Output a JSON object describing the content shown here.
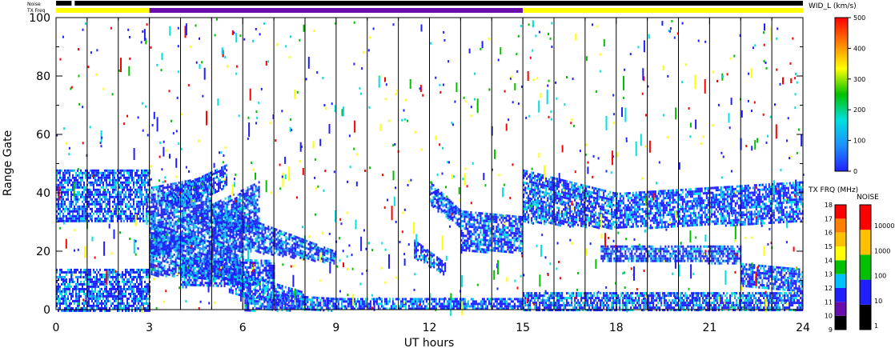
{
  "header": {
    "noise_label": "Noise",
    "txfreq_label": "TX Freq"
  },
  "chart_data": {
    "type": "heatmap",
    "xlabel": "UT hours",
    "ylabel": "Range Gate",
    "xlim": [
      0,
      24
    ],
    "ylim": [
      0,
      100
    ],
    "x_ticks": [
      0,
      3,
      6,
      9,
      12,
      15,
      18,
      21,
      24
    ],
    "y_ticks": [
      0,
      20,
      40,
      60,
      80,
      100
    ],
    "grid_vertical_hours": [
      1,
      2,
      3,
      4,
      5,
      6,
      7,
      8,
      9,
      10,
      11,
      12,
      13,
      14,
      15,
      16,
      17,
      18,
      19,
      20,
      21,
      22,
      23
    ],
    "colorbar_width": {
      "title": "WID_L (km/s)",
      "ticks": [
        0,
        100,
        200,
        300,
        400,
        500
      ],
      "colors": [
        "#2020ff",
        "#1e90ff",
        "#00e0e0",
        "#00c000",
        "#ffff00",
        "#ff8000",
        "#ff0000"
      ]
    },
    "colorbar_txfreq": {
      "title": "TX FRQ (MHz)",
      "ticks": [
        "9",
        "10",
        "11",
        "12",
        "13",
        "14",
        "15",
        "16",
        "17",
        "18"
      ],
      "colors": [
        "#000000",
        "#6a0dad",
        "#2020ff",
        "#00c0ff",
        "#00c000",
        "#ffff00",
        "#ffc000",
        "#ff8000",
        "#ff0000"
      ]
    },
    "colorbar_noise": {
      "title": "NOISE",
      "ticks": [
        "1",
        "10",
        "100",
        "1000",
        "10000"
      ],
      "colors": [
        "#000000",
        "#2020ff",
        "#00c000",
        "#ffc000",
        "#ff0000"
      ]
    },
    "tx_freq_segments": [
      {
        "start": 0,
        "end": 3,
        "color": "#ffff00"
      },
      {
        "start": 3,
        "end": 15,
        "color": "#6a0dad"
      },
      {
        "start": 15,
        "end": 24,
        "color": "#ffff00"
      }
    ],
    "noise_segments": [
      {
        "start": 0,
        "end": 0.5,
        "color": "#000000"
      },
      {
        "start": 0.5,
        "end": 0.6,
        "color": "#ffffff"
      },
      {
        "start": 0.6,
        "end": 24,
        "color": "#000000"
      }
    ],
    "echo_bands": [
      {
        "t0": 0.0,
        "t1": 3.0,
        "g0a": 30,
        "g1a": 48,
        "g0b": 30,
        "g1b": 48
      },
      {
        "t0": 0.0,
        "t1": 3.0,
        "g0a": 0,
        "g1a": 14,
        "g0b": 0,
        "g1b": 14
      },
      {
        "t0": 3.0,
        "t1": 5.0,
        "g0a": 28,
        "g1a": 42,
        "g0b": 30,
        "g1b": 46
      },
      {
        "t0": 3.0,
        "t1": 6.0,
        "g0a": 12,
        "g1a": 30,
        "g0b": 10,
        "g1b": 20
      },
      {
        "t0": 3.0,
        "t1": 6.5,
        "g0a": 18,
        "g1a": 26,
        "g0b": 28,
        "g1b": 44
      },
      {
        "t0": 3.5,
        "t1": 5.5,
        "g0a": 34,
        "g1a": 40,
        "g0b": 42,
        "g1b": 50
      },
      {
        "t0": 4.0,
        "t1": 7.0,
        "g0a": 8,
        "g1a": 18,
        "g0b": 9,
        "g1b": 17
      },
      {
        "t0": 5.0,
        "t1": 9.0,
        "g0a": 22,
        "g1a": 36,
        "g0b": 16,
        "g1b": 20
      },
      {
        "t0": 5.5,
        "t1": 8.0,
        "g0a": 6,
        "g1a": 14,
        "g0b": 0,
        "g1b": 6
      },
      {
        "t0": 6.0,
        "t1": 9.0,
        "g0a": 0,
        "g1a": 6,
        "g0b": 0,
        "g1b": 4
      },
      {
        "t0": 9.0,
        "t1": 15.0,
        "g0a": 0,
        "g1a": 4,
        "g0b": 0,
        "g1b": 4
      },
      {
        "t0": 11.5,
        "t1": 12.5,
        "g0a": 18,
        "g1a": 24,
        "g0b": 12,
        "g1b": 16
      },
      {
        "t0": 12.0,
        "t1": 13.0,
        "g0a": 36,
        "g1a": 44,
        "g0b": 28,
        "g1b": 34
      },
      {
        "t0": 13.0,
        "t1": 15.0,
        "g0a": 20,
        "g1a": 34,
        "g0b": 20,
        "g1b": 32
      },
      {
        "t0": 15.0,
        "t1": 18.0,
        "g0a": 30,
        "g1a": 48,
        "g0b": 28,
        "g1b": 40
      },
      {
        "t0": 18.0,
        "t1": 24.0,
        "g0a": 28,
        "g1a": 40,
        "g0b": 30,
        "g1b": 44
      },
      {
        "t0": 17.5,
        "t1": 22.0,
        "g0a": 17,
        "g1a": 22,
        "g0b": 16,
        "g1b": 22
      },
      {
        "t0": 15.0,
        "t1": 24.0,
        "g0a": 0,
        "g1a": 6,
        "g0b": 0,
        "g1b": 6
      },
      {
        "t0": 22.0,
        "t1": 24.0,
        "g0a": 8,
        "g1a": 16,
        "g0b": 6,
        "g1b": 14
      }
    ],
    "echo_colors": [
      "#2020ff",
      "#2020ff",
      "#2020ff",
      "#1e90ff",
      "#00e0e0"
    ],
    "speckle_colors": [
      "#2020ff",
      "#2020ff",
      "#00e0e0",
      "#ff0000",
      "#00c000",
      "#ffff00"
    ]
  }
}
